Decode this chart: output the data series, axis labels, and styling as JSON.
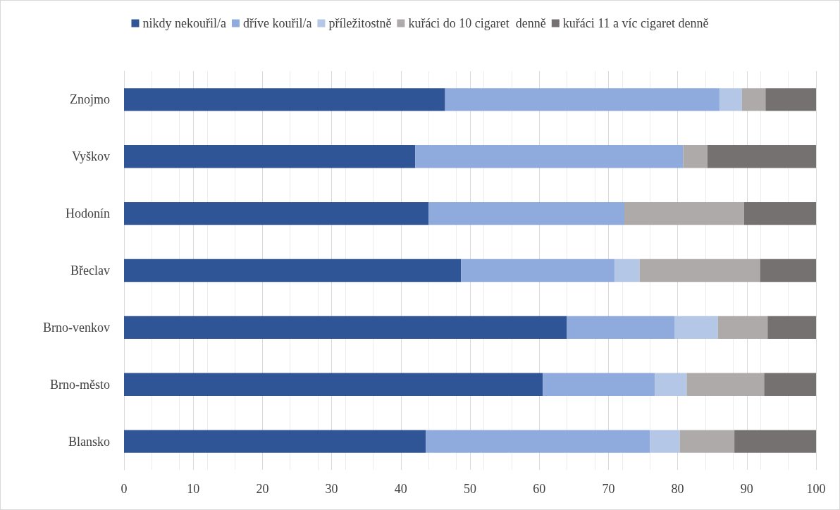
{
  "chart_data": {
    "type": "bar",
    "orientation": "horizontal",
    "stacked": true,
    "legend": "top",
    "grid": "x",
    "categories": [
      "Znojmo",
      "Vyškov",
      "Hodonín",
      "Břeclav",
      "Brno-venkov",
      "Brno-město",
      "Blansko"
    ],
    "xlim": [
      0,
      100
    ],
    "xticks": [
      0,
      10,
      20,
      30,
      40,
      50,
      60,
      70,
      80,
      90,
      100
    ],
    "series": [
      {
        "name": "nikdy nekouřil/a",
        "color": "#2f5597",
        "values": [
          46.4,
          42.1,
          44.0,
          48.7,
          64.0,
          60.5,
          43.6
        ]
      },
      {
        "name": "dříve kouřil/a",
        "color": "#8faadc",
        "values": [
          39.7,
          38.7,
          28.3,
          22.2,
          15.6,
          16.2,
          32.4
        ]
      },
      {
        "name": "příležitostně",
        "color": "#b4c7e7",
        "values": [
          3.2,
          0,
          0,
          3.6,
          6.2,
          4.6,
          4.3
        ]
      },
      {
        "name": "kuřáci do 10 cigaret  denně",
        "color": "#aeaaaa",
        "values": [
          3.4,
          3.5,
          17.3,
          17.4,
          7.2,
          11.2,
          7.9
        ]
      },
      {
        "name": "kuřáci 11 a víc cigaret denně",
        "color": "#767171",
        "values": [
          7.3,
          15.7,
          10.4,
          8.1,
          7.0,
          7.5,
          11.8
        ]
      }
    ]
  }
}
